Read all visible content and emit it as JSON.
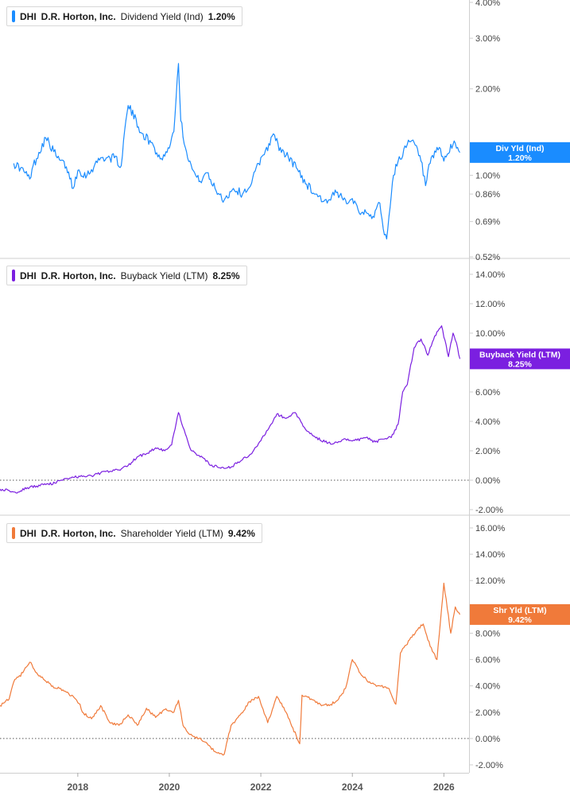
{
  "chart_data": [
    {
      "type": "line",
      "legend": {
        "ticker": "DHI",
        "company": "D.R. Horton, Inc.",
        "metric": "Dividend Yield (Ind)",
        "value": "1.20%"
      },
      "callout": {
        "label": "Div Yld (Ind)",
        "value": "1.20%"
      },
      "color": "#1a8cff",
      "scale": "log",
      "ylim": [
        0.52,
        4.0
      ],
      "yticks": [
        {
          "v": 4.0,
          "label": "4.00%"
        },
        {
          "v": 3.0,
          "label": "3.00%"
        },
        {
          "v": 2.0,
          "label": "2.00%"
        },
        {
          "v": 1.0,
          "label": "1.00%"
        },
        {
          "v": 0.86,
          "label": "0.86%"
        },
        {
          "v": 0.69,
          "label": "0.69%"
        },
        {
          "v": 0.52,
          "label": "0.52%"
        }
      ],
      "zero_line": false,
      "series": [
        {
          "x": [
            2016.6,
            2016.75,
            2016.95,
            2017.0,
            2017.3,
            2017.55,
            2017.75,
            2017.9,
            2018.0,
            2018.2,
            2018.5,
            2018.8,
            2018.95,
            2019.1,
            2019.4,
            2019.6,
            2019.8,
            2019.95,
            2020.1,
            2020.2,
            2020.25,
            2020.35,
            2020.5,
            2020.65,
            2020.8,
            2021.0,
            2021.2,
            2021.4,
            2021.6,
            2021.8,
            2021.95,
            2022.1,
            2022.3,
            2022.45,
            2022.6,
            2022.8,
            2023.0,
            2023.2,
            2023.45,
            2023.65,
            2023.8,
            2024.0,
            2024.2,
            2024.45,
            2024.6,
            2024.7,
            2024.75,
            2024.8,
            2024.9,
            2025.0,
            2025.2,
            2025.35,
            2025.5,
            2025.6,
            2025.7,
            2025.9,
            2026.0,
            2026.2,
            2026.3,
            2026.35
          ],
          "y": [
            1.1,
            1.06,
            0.97,
            1.05,
            1.35,
            1.15,
            1.07,
            0.9,
            1.04,
            1.0,
            1.15,
            1.15,
            1.08,
            1.75,
            1.4,
            1.3,
            1.14,
            1.2,
            1.42,
            2.45,
            1.55,
            1.25,
            1.05,
            0.95,
            1.02,
            0.9,
            0.82,
            0.9,
            0.86,
            0.94,
            1.1,
            1.22,
            1.38,
            1.2,
            1.16,
            1.05,
            0.93,
            0.86,
            0.8,
            0.87,
            0.82,
            0.83,
            0.74,
            0.72,
            0.8,
            0.62,
            0.6,
            0.72,
            1.0,
            1.12,
            1.28,
            1.3,
            1.12,
            0.92,
            1.1,
            1.25,
            1.12,
            1.28,
            1.25,
            1.2
          ]
        }
      ]
    },
    {
      "type": "line",
      "legend": {
        "ticker": "DHI",
        "company": "D.R. Horton, Inc.",
        "metric": "Buyback Yield (LTM)",
        "value": "8.25%"
      },
      "callout": {
        "label": "Buyback Yield (LTM)",
        "value": "8.25%"
      },
      "color": "#7b1fe0",
      "scale": "linear",
      "ylim": [
        -2.0,
        14.0
      ],
      "yticks": [
        {
          "v": 14.0,
          "label": "14.00%"
        },
        {
          "v": 12.0,
          "label": "12.00%"
        },
        {
          "v": 10.0,
          "label": "10.00%"
        },
        {
          "v": 8.0,
          "label": "8.00%"
        },
        {
          "v": 6.0,
          "label": "6.00%"
        },
        {
          "v": 4.0,
          "label": "4.00%"
        },
        {
          "v": 2.0,
          "label": "2.00%"
        },
        {
          "v": 0.0,
          "label": "0.00%"
        },
        {
          "v": -2.0,
          "label": "-2.00%"
        }
      ],
      "zero_line": true,
      "series": [
        {
          "x": [
            2016.3,
            2016.5,
            2016.7,
            2016.9,
            2017.1,
            2017.3,
            2017.5,
            2017.7,
            2017.9,
            2018.1,
            2018.3,
            2018.5,
            2018.7,
            2018.9,
            2019.1,
            2019.3,
            2019.5,
            2019.7,
            2019.9,
            2020.05,
            2020.2,
            2020.3,
            2020.45,
            2020.6,
            2020.75,
            2020.9,
            2021.05,
            2021.2,
            2021.35,
            2021.6,
            2021.8,
            2021.95,
            2022.15,
            2022.35,
            2022.55,
            2022.75,
            2022.95,
            2023.15,
            2023.4,
            2023.6,
            2023.85,
            2024.05,
            2024.3,
            2024.5,
            2024.7,
            2024.85,
            2025.0,
            2025.1,
            2025.2,
            2025.35,
            2025.5,
            2025.65,
            2025.8,
            2025.95,
            2026.1,
            2026.2,
            2026.3,
            2026.35
          ],
          "y": [
            -0.6,
            -0.7,
            -0.8,
            -0.5,
            -0.4,
            -0.3,
            -0.2,
            0.1,
            0.2,
            0.25,
            0.3,
            0.5,
            0.6,
            0.7,
            1.0,
            1.6,
            1.8,
            2.2,
            2.0,
            2.4,
            4.6,
            3.6,
            2.2,
            1.7,
            1.5,
            1.0,
            0.9,
            0.8,
            0.9,
            1.4,
            1.8,
            2.5,
            3.4,
            4.5,
            4.2,
            4.6,
            3.6,
            3.0,
            2.6,
            2.5,
            2.8,
            2.7,
            2.9,
            2.6,
            2.8,
            2.9,
            3.8,
            6.0,
            6.5,
            9.0,
            9.6,
            8.5,
            9.8,
            10.5,
            8.4,
            10.0,
            9.0,
            8.25
          ]
        }
      ]
    },
    {
      "type": "line",
      "legend": {
        "ticker": "DHI",
        "company": "D.R. Horton, Inc.",
        "metric": "Shareholder Yield (LTM)",
        "value": "9.42%"
      },
      "callout": {
        "label": "Shr Yld (LTM)",
        "value": "9.42%"
      },
      "color": "#f07a3a",
      "scale": "linear",
      "ylim": [
        -2.0,
        16.0
      ],
      "yticks": [
        {
          "v": 16.0,
          "label": "16.00%"
        },
        {
          "v": 14.0,
          "label": "14.00%"
        },
        {
          "v": 12.0,
          "label": "12.00%"
        },
        {
          "v": 10.0,
          "label": "10.00%"
        },
        {
          "v": 8.0,
          "label": "8.00%"
        },
        {
          "v": 6.0,
          "label": "6.00%"
        },
        {
          "v": 4.0,
          "label": "4.00%"
        },
        {
          "v": 2.0,
          "label": "2.00%"
        },
        {
          "v": 0.0,
          "label": "0.00%"
        },
        {
          "v": -2.0,
          "label": "-2.00%"
        }
      ],
      "zero_line": true,
      "series": [
        {
          "x": [
            2016.3,
            2016.5,
            2016.6,
            2016.8,
            2016.95,
            2017.1,
            2017.25,
            2017.45,
            2017.7,
            2017.9,
            2018.05,
            2018.1,
            2018.3,
            2018.5,
            2018.7,
            2018.9,
            2019.1,
            2019.3,
            2019.5,
            2019.7,
            2019.9,
            2020.1,
            2020.2,
            2020.3,
            2020.45,
            2020.65,
            2020.85,
            2021.0,
            2021.2,
            2021.35,
            2021.55,
            2021.75,
            2021.95,
            2022.15,
            2022.35,
            2022.55,
            2022.7,
            2022.85,
            2022.9,
            2023.1,
            2023.3,
            2023.5,
            2023.7,
            2023.85,
            2024.0,
            2024.2,
            2024.4,
            2024.6,
            2024.8,
            2024.95,
            2025.05,
            2025.25,
            2025.4,
            2025.55,
            2025.7,
            2025.85,
            2026.0,
            2026.15,
            2026.25,
            2026.35
          ],
          "y": [
            2.5,
            3.0,
            4.3,
            5.0,
            5.8,
            5.0,
            4.5,
            4.0,
            3.6,
            3.2,
            2.6,
            2.0,
            1.5,
            2.5,
            1.2,
            1.0,
            1.8,
            1.0,
            2.3,
            1.6,
            2.2,
            2.0,
            2.9,
            1.0,
            0.3,
            0.0,
            -0.5,
            -1.0,
            -1.2,
            1.0,
            1.8,
            2.8,
            3.2,
            1.2,
            3.2,
            2.0,
            0.8,
            -0.4,
            3.3,
            3.0,
            2.6,
            2.5,
            3.0,
            3.8,
            6.0,
            4.8,
            4.2,
            4.0,
            3.8,
            2.6,
            6.5,
            7.5,
            8.2,
            8.7,
            7.0,
            6.0,
            11.8,
            8.0,
            10.0,
            9.42
          ]
        }
      ]
    }
  ],
  "x_axis": {
    "xlim": [
      2016.3,
      2026.55
    ],
    "ticks": [
      {
        "v": 2018,
        "label": "2018"
      },
      {
        "v": 2020,
        "label": "2020"
      },
      {
        "v": 2022,
        "label": "2022"
      },
      {
        "v": 2024,
        "label": "2024"
      },
      {
        "v": 2026,
        "label": "2026"
      }
    ]
  }
}
